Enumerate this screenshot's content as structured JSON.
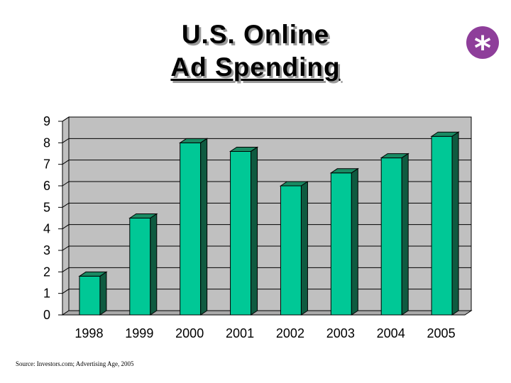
{
  "title_line1": "U.S. Online",
  "title_line2": "Ad Spending",
  "badge_symbol": "*",
  "source": "Source: Investors.com; Advertising Age, 2005",
  "colors": {
    "bar_front": "#00c896",
    "bar_top": "#1a8a63",
    "bar_side": "#0f5a40",
    "wall": "#c0c0c0",
    "badge": "#8e3e9a"
  },
  "chart_data": {
    "type": "bar",
    "categories": [
      "1998",
      "1999",
      "2000",
      "2001",
      "2002",
      "2003",
      "2004",
      "2005"
    ],
    "values": [
      1.8,
      4.5,
      8.0,
      7.6,
      6.0,
      6.6,
      7.3,
      8.3
    ],
    "title": "",
    "xlabel": "",
    "ylabel": "",
    "ylim": [
      0,
      9
    ],
    "yticks": [
      "0",
      "1",
      "2",
      "3",
      "4",
      "5",
      "6",
      "7",
      "8",
      "9"
    ],
    "grid": true,
    "legend": "none"
  }
}
